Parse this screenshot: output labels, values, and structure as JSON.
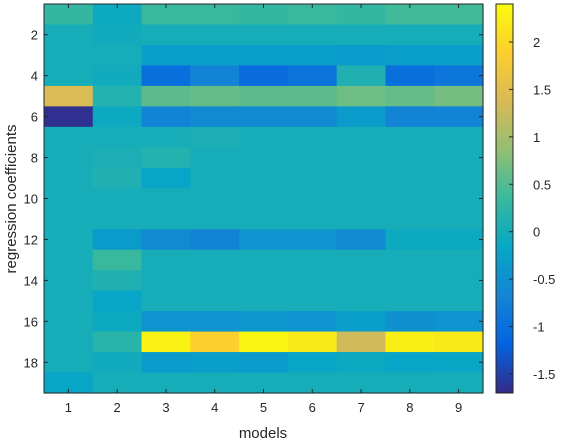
{
  "chart_data": {
    "type": "heatmap",
    "xlabel": "models",
    "ylabel": "regression coefficients",
    "x": [
      1,
      2,
      3,
      4,
      5,
      6,
      7,
      8,
      9
    ],
    "y": [
      1,
      2,
      3,
      4,
      5,
      6,
      7,
      8,
      9,
      10,
      11,
      12,
      13,
      14,
      15,
      16,
      17,
      18,
      19
    ],
    "x_ticks": [
      "1",
      "2",
      "3",
      "4",
      "5",
      "6",
      "7",
      "8",
      "9"
    ],
    "y_ticks": [
      "2",
      "4",
      "6",
      "8",
      "10",
      "12",
      "14",
      "16",
      "18"
    ],
    "colorbar": {
      "range": [
        -1.7,
        2.4
      ],
      "ticks": [
        "2",
        "1.5",
        "1",
        "0.5",
        "0",
        "-0.5",
        "-1",
        "-1.5"
      ],
      "tick_values": [
        2,
        1.5,
        1,
        0.5,
        0,
        -0.5,
        -1,
        -1.5
      ],
      "colormap": "parula",
      "stops": [
        "#352a87",
        "#0363e1",
        "#1485d4",
        "#06a7c6",
        "#38b99e",
        "#92bf73",
        "#d9ba56",
        "#fcce2e",
        "#f9fb0e"
      ]
    },
    "values": [
      [
        0.3,
        -0.1,
        0.35,
        0.35,
        0.3,
        0.35,
        0.3,
        0.4,
        0.4
      ],
      [
        0.0,
        -0.05,
        0.0,
        0.0,
        0.0,
        0.0,
        0.0,
        0.0,
        0.0
      ],
      [
        0.0,
        0.0,
        -0.3,
        -0.3,
        -0.3,
        -0.3,
        -0.35,
        -0.3,
        -0.3
      ],
      [
        0.0,
        -0.05,
        -1.0,
        -0.7,
        -1.05,
        -0.95,
        0.1,
        -1.0,
        -0.9
      ],
      [
        1.4,
        0.15,
        0.55,
        0.6,
        0.55,
        0.55,
        0.65,
        0.6,
        0.7
      ],
      [
        -1.65,
        -0.1,
        -0.7,
        -0.6,
        -0.6,
        -0.6,
        -0.35,
        -0.7,
        -0.7
      ],
      [
        0.0,
        0.0,
        0.0,
        0.05,
        0.0,
        0.0,
        0.0,
        0.0,
        0.0
      ],
      [
        0.0,
        0.05,
        0.15,
        0.0,
        0.0,
        0.0,
        0.0,
        0.0,
        0.0
      ],
      [
        0.0,
        0.1,
        -0.2,
        0.0,
        0.0,
        0.0,
        0.0,
        0.0,
        0.0
      ],
      [
        0.0,
        0.0,
        0.0,
        0.0,
        0.0,
        0.0,
        0.0,
        0.0,
        0.0
      ],
      [
        0.0,
        0.0,
        0.0,
        0.0,
        0.0,
        0.0,
        0.0,
        0.0,
        0.0
      ],
      [
        0.0,
        -0.35,
        -0.6,
        -0.7,
        -0.45,
        -0.45,
        -0.6,
        -0.1,
        -0.1
      ],
      [
        0.0,
        0.35,
        0.0,
        0.0,
        0.0,
        0.0,
        0.0,
        0.0,
        0.0
      ],
      [
        0.0,
        0.1,
        0.0,
        0.0,
        0.0,
        0.0,
        0.0,
        0.0,
        0.0
      ],
      [
        0.0,
        -0.2,
        0.0,
        0.0,
        0.0,
        0.0,
        0.0,
        0.0,
        0.0
      ],
      [
        0.0,
        -0.1,
        -0.45,
        -0.45,
        -0.4,
        -0.45,
        -0.3,
        -0.5,
        -0.45
      ],
      [
        0.0,
        0.2,
        2.3,
        1.9,
        2.35,
        2.2,
        1.3,
        2.25,
        2.2
      ],
      [
        0.0,
        -0.05,
        -0.35,
        -0.3,
        -0.35,
        -0.2,
        -0.1,
        -0.2,
        -0.15
      ],
      [
        -0.2,
        0.0,
        0.0,
        0.0,
        0.0,
        0.0,
        0.0,
        0.0,
        0.0
      ]
    ]
  }
}
